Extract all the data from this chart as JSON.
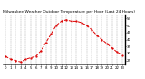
{
  "title": "Milwaukee Weather Outdoor Temperature per Hour (Last 24 Hours)",
  "hours": [
    0,
    1,
    2,
    3,
    4,
    5,
    6,
    7,
    8,
    9,
    10,
    11,
    12,
    13,
    14,
    15,
    16,
    17,
    18,
    19,
    20,
    21,
    22,
    23
  ],
  "temps": [
    28,
    26,
    25,
    24,
    26,
    27,
    28,
    32,
    38,
    44,
    50,
    53,
    54,
    53,
    53,
    52,
    50,
    47,
    43,
    40,
    37,
    34,
    31,
    29
  ],
  "line_color": "#dd0000",
  "marker": ".",
  "linestyle": "--",
  "ylim": [
    22,
    58
  ],
  "yticks": [
    25,
    30,
    35,
    40,
    45,
    50,
    55
  ],
  "background_color": "#ffffff",
  "grid_color": "#999999",
  "title_fontsize": 3.2,
  "tick_fontsize": 2.8,
  "linewidth": 0.7,
  "markersize": 1.2
}
